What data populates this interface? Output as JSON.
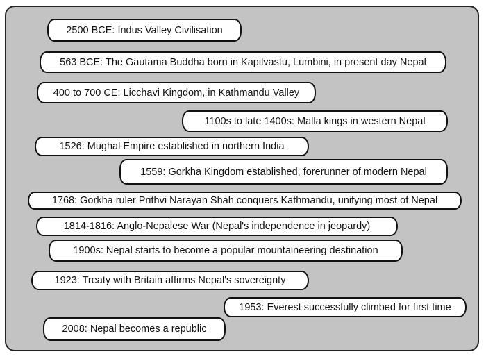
{
  "events": [
    "2500 BCE: Indus Valley Civilisation",
    "563 BCE: The Gautama Buddha born in Kapilvastu, Lumbini, in present day Nepal",
    "400 to 700 CE: Licchavi Kingdom, in Kathmandu Valley",
    "1100s to late 1400s: Malla kings in western Nepal",
    "1526: Mughal Empire established in northern India",
    "1559: Gorkha Kingdom established, forerunner of modern Nepal",
    "1768: Gorkha ruler Prithvi Narayan Shah conquers Kathmandu, unifying most of Nepal",
    "1814-1816: Anglo-Nepalese War (Nepal's independence in jeopardy)",
    "1900s: Nepal starts to become a popular mountaineering destination",
    "1923: Treaty with Britain affirms Nepal's sovereignty",
    "1953: Everest successfully climbed for first time",
    "2008: Nepal becomes a republic"
  ],
  "colors": {
    "panel": "#c3c3c3",
    "box": "#ffffff",
    "border": "#111111"
  }
}
